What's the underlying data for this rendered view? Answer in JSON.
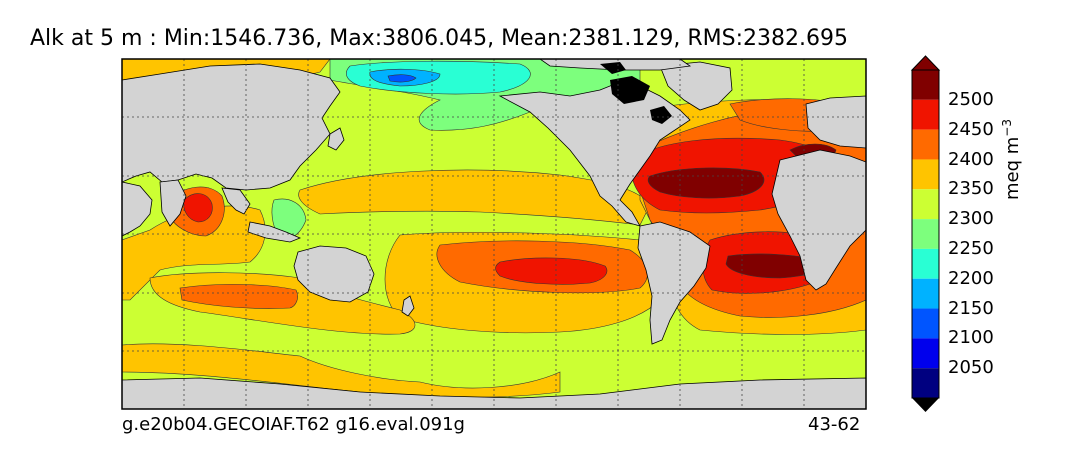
{
  "title": "Alk at 5 m : Min:1546.736, Max:3806.045, Mean:2381.129, RMS:2382.695",
  "footer": {
    "run_name": "g.e20b04.GECOIAF.T62 g16.eval.091g",
    "years": "43-62"
  },
  "colorbar": {
    "unit_text": "meq m",
    "unit_exp": "−3",
    "levels": [
      {
        "label": "2500",
        "color": "#800000"
      },
      {
        "label": "2450",
        "color": "#f01400"
      },
      {
        "label": "2400",
        "color": "#ff6a00"
      },
      {
        "label": "2350",
        "color": "#ffc400"
      },
      {
        "label": "2300",
        "color": "#ccff33"
      },
      {
        "label": "2250",
        "color": "#7dff7d"
      },
      {
        "label": "2200",
        "color": "#29ffd4"
      },
      {
        "label": "2150",
        "color": "#00b2ff"
      },
      {
        "label": "2100",
        "color": "#0055ff"
      },
      {
        "label": "2050",
        "color": "#0000ed"
      }
    ],
    "low_color": "#000080",
    "top_color": "#800000"
  },
  "map_colors": {
    "land": "#d3d3d3",
    "ice": "#000000"
  }
}
